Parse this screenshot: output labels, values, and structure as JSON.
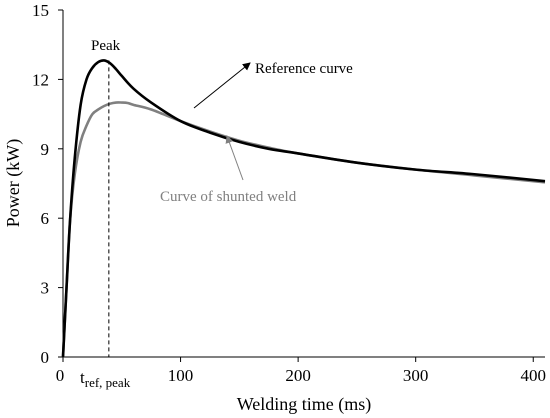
{
  "chart_data": {
    "type": "line",
    "xlabel": "Welding time (ms)",
    "ylabel": "Power (kW)",
    "xlim": [
      0,
      410
    ],
    "ylim": [
      0,
      15
    ],
    "xticks": [
      0,
      100,
      200,
      300,
      400
    ],
    "yticks": [
      0,
      3,
      6,
      9,
      12,
      15
    ],
    "grid": false,
    "legend": "none",
    "series": [
      {
        "name": "Reference curve",
        "color": "#000000",
        "x": [
          0,
          3,
          6,
          10,
          15,
          20,
          25,
          30,
          35,
          40,
          45,
          50,
          60,
          75,
          100,
          125,
          150,
          175,
          200,
          250,
          300,
          350,
          410
        ],
        "y": [
          0,
          3.0,
          5.9,
          8.6,
          10.9,
          12.0,
          12.5,
          12.75,
          12.82,
          12.7,
          12.45,
          12.15,
          11.6,
          11.0,
          10.2,
          9.7,
          9.3,
          9.0,
          8.8,
          8.4,
          8.1,
          7.9,
          7.6
        ]
      },
      {
        "name": "Curve of shunted weld",
        "color": "#808080",
        "x": [
          0,
          3,
          6,
          10,
          15,
          20,
          25,
          30,
          35,
          40,
          45,
          50,
          55,
          60,
          75,
          100,
          125,
          150,
          175,
          200,
          250,
          300,
          350,
          410
        ],
        "y": [
          0,
          3.0,
          5.9,
          7.9,
          9.3,
          10.0,
          10.5,
          10.7,
          10.85,
          10.95,
          11.0,
          11.0,
          10.98,
          10.9,
          10.7,
          10.2,
          9.75,
          9.35,
          9.05,
          8.8,
          8.4,
          8.1,
          7.85,
          7.55
        ]
      }
    ],
    "annotations": {
      "peak_label": "Peak",
      "peak_x": 39,
      "reference_label": "Reference curve",
      "shunted_label": "Curve of shunted weld",
      "tref_main": "t",
      "tref_sub": "ref, peak"
    }
  }
}
